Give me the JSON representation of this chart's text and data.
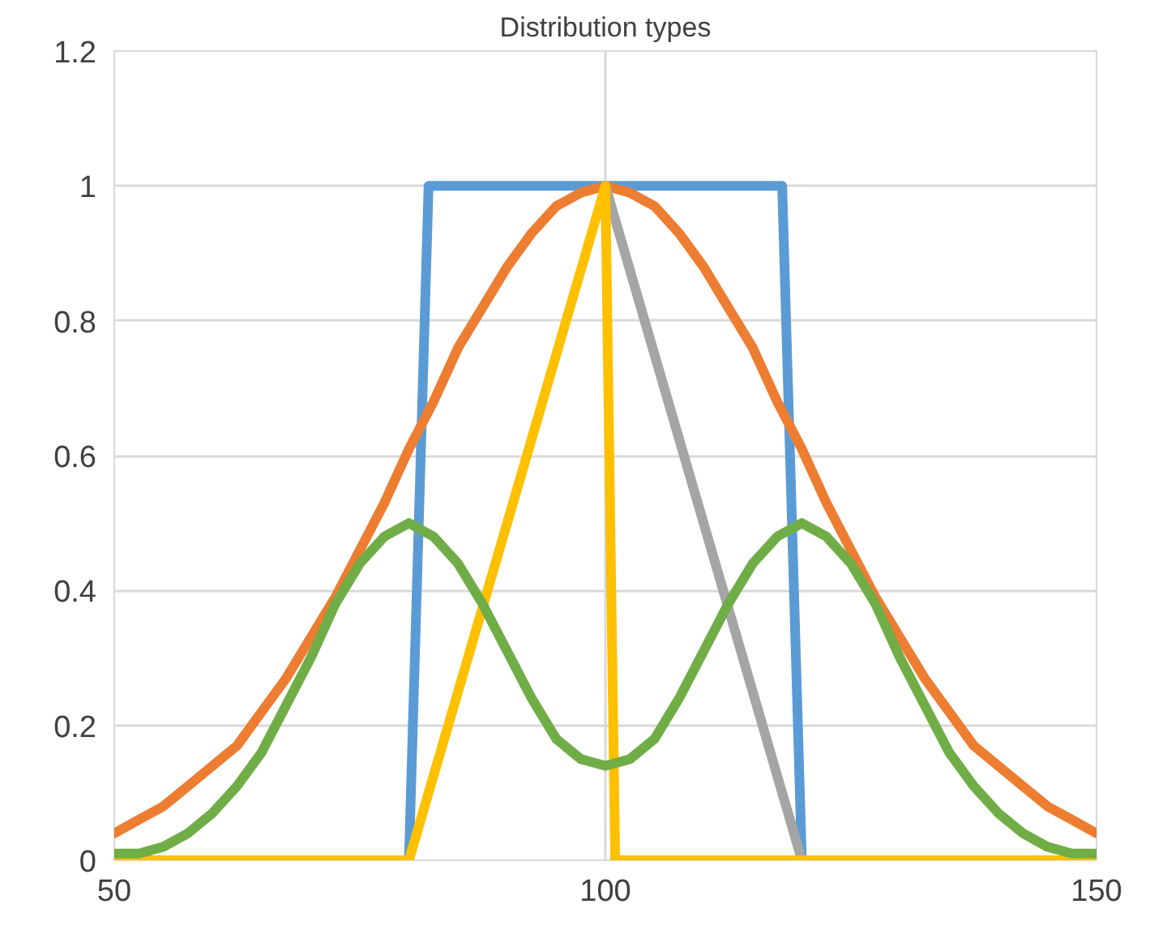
{
  "chart_data": {
    "type": "line",
    "title": "Distribution types",
    "xlim": [
      50,
      150
    ],
    "xticks": [
      50,
      100,
      150
    ],
    "ylim": [
      0,
      1.2
    ],
    "yticks": [
      0,
      0.2,
      0.4,
      0.6,
      0.8,
      1,
      1.2
    ],
    "grid": true,
    "marker": "none",
    "line_style": "solid",
    "series": [
      {
        "color": "#5b9bd5",
        "x": [
          80,
          82,
          118,
          120
        ],
        "values": [
          0,
          1,
          1,
          0
        ]
      },
      {
        "color": "#ed7d31",
        "x": [
          50,
          52.5,
          55,
          57.5,
          60,
          62.5,
          65,
          67.5,
          70,
          72.5,
          75,
          77.5,
          80,
          82.5,
          85,
          87.5,
          90,
          92.5,
          95,
          97.5,
          100,
          102.5,
          105,
          107.5,
          110,
          112.5,
          115,
          117.5,
          120,
          122.5,
          125,
          127.5,
          130,
          132.5,
          135,
          137.5,
          140,
          142.5,
          145,
          147.5,
          150
        ],
        "values": [
          0.04,
          0.06,
          0.08,
          0.11,
          0.14,
          0.17,
          0.22,
          0.27,
          0.33,
          0.39,
          0.46,
          0.53,
          0.61,
          0.68,
          0.76,
          0.82,
          0.88,
          0.93,
          0.97,
          0.99,
          1,
          0.99,
          0.97,
          0.93,
          0.88,
          0.82,
          0.76,
          0.68,
          0.61,
          0.53,
          0.46,
          0.39,
          0.33,
          0.27,
          0.22,
          0.17,
          0.14,
          0.11,
          0.08,
          0.06,
          0.04
        ]
      },
      {
        "color": "#a5a5a5",
        "x": [
          100,
          120
        ],
        "values": [
          1,
          0
        ]
      },
      {
        "color": "#ffc000",
        "x": [
          50,
          80,
          100,
          101,
          150
        ],
        "values": [
          0,
          0,
          1,
          0,
          0
        ]
      },
      {
        "color": "#70ad47",
        "x": [
          50,
          52.5,
          55,
          57.5,
          60,
          62.5,
          65,
          67.5,
          70,
          72.5,
          75,
          77.5,
          80,
          82.5,
          85,
          87.5,
          90,
          92.5,
          95,
          97.5,
          100,
          102.5,
          105,
          107.5,
          110,
          112.5,
          115,
          117.5,
          120,
          122.5,
          125,
          127.5,
          130,
          132.5,
          135,
          137.5,
          140,
          142.5,
          145,
          147.5,
          150
        ],
        "values": [
          0.01,
          0.01,
          0.02,
          0.04,
          0.07,
          0.11,
          0.16,
          0.23,
          0.3,
          0.38,
          0.44,
          0.48,
          0.5,
          0.48,
          0.44,
          0.38,
          0.31,
          0.24,
          0.18,
          0.15,
          0.14,
          0.15,
          0.18,
          0.24,
          0.31,
          0.38,
          0.44,
          0.48,
          0.5,
          0.48,
          0.44,
          0.38,
          0.3,
          0.23,
          0.16,
          0.11,
          0.07,
          0.04,
          0.02,
          0.01,
          0.01
        ]
      }
    ]
  }
}
